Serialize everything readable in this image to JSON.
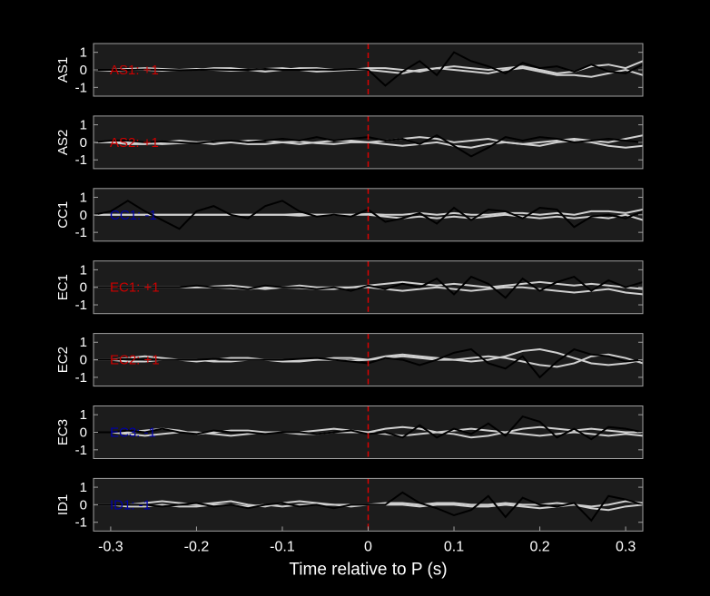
{
  "chart_data": [
    {
      "type": "line",
      "ylabel": "AS1",
      "annotation": "AS1: +1",
      "annotation_color": "#cc0000",
      "vline": 0,
      "vline_color": "#dd0000",
      "x": [
        -0.32,
        -0.3,
        -0.28,
        -0.26,
        -0.24,
        -0.22,
        -0.2,
        -0.18,
        -0.16,
        -0.14,
        -0.12,
        -0.1,
        -0.08,
        -0.06,
        -0.04,
        -0.02,
        0,
        0.02,
        0.04,
        0.06,
        0.08,
        0.1,
        0.12,
        0.14,
        0.16,
        0.18,
        0.2,
        0.22,
        0.24,
        0.26,
        0.28,
        0.3,
        0.32
      ],
      "xlim": [
        -0.32,
        0.32
      ],
      "ylim": [
        -1.5,
        1.5
      ],
      "yticks": [
        -1,
        0,
        1
      ],
      "series": [
        {
          "color": "#d0d0d0",
          "values": [
            0,
            0,
            0.05,
            0.1,
            0.05,
            0,
            0,
            0.1,
            0.1,
            0,
            -0.1,
            0,
            0.1,
            0.1,
            0,
            0,
            0.1,
            0.1,
            0,
            -0.1,
            0.1,
            0.2,
            0.1,
            0,
            0.1,
            0.2,
            0,
            -0.2,
            -0.1,
            0.2,
            0.3,
            0.1,
            0.5
          ]
        },
        {
          "color": "#d0d0d0",
          "values": [
            0,
            -0.05,
            0,
            0,
            -0.05,
            0,
            0.05,
            0,
            -0.05,
            0,
            0.05,
            0.1,
            0,
            -0.1,
            -0.05,
            0,
            0,
            -0.1,
            -0.2,
            0,
            0.1,
            0,
            -0.1,
            -0.2,
            0,
            0.1,
            -0.1,
            -0.3,
            -0.3,
            -0.4,
            -0.2,
            0,
            -0.3
          ]
        },
        {
          "color": "#000000",
          "values": [
            0,
            0,
            0,
            0.02,
            0,
            -0.02,
            0,
            0.02,
            0,
            0,
            0.05,
            0,
            0,
            0.02,
            0,
            0.05,
            0,
            -0.9,
            -0.1,
            0.5,
            -0.3,
            1.0,
            0.5,
            0.2,
            -0.2,
            0.4,
            0.1,
            0.2,
            -0.1,
            0.3,
            -0.1,
            -0.2,
            0.3
          ]
        }
      ]
    },
    {
      "type": "line",
      "ylabel": "AS2",
      "annotation": "AS2: +1",
      "annotation_color": "#cc0000",
      "vline": 0,
      "vline_color": "#dd0000",
      "x": [
        -0.32,
        -0.3,
        -0.28,
        -0.26,
        -0.24,
        -0.22,
        -0.2,
        -0.18,
        -0.16,
        -0.14,
        -0.12,
        -0.1,
        -0.08,
        -0.06,
        -0.04,
        -0.02,
        0,
        0.02,
        0.04,
        0.06,
        0.08,
        0.1,
        0.12,
        0.14,
        0.16,
        0.18,
        0.2,
        0.22,
        0.24,
        0.26,
        0.28,
        0.3,
        0.32
      ],
      "xlim": [
        -0.32,
        0.32
      ],
      "ylim": [
        -1.5,
        1.5
      ],
      "yticks": [
        -1,
        0,
        1
      ],
      "series": [
        {
          "color": "#d0d0d0",
          "values": [
            0,
            0,
            -0.1,
            -0.1,
            0,
            0.1,
            0,
            -0.1,
            0,
            0.1,
            0.1,
            0,
            -0.1,
            0,
            0.1,
            0.1,
            0,
            0.1,
            0.2,
            0.3,
            0.2,
            0,
            0.1,
            0.2,
            0,
            -0.1,
            0,
            0.1,
            0.2,
            0.1,
            0,
            0.2,
            0.4
          ]
        },
        {
          "color": "#d0d0d0",
          "values": [
            0,
            0,
            0,
            -0.05,
            -0.1,
            -0.05,
            0,
            0.05,
            0,
            -0.1,
            -0.1,
            0,
            0.05,
            -0.05,
            -0.1,
            0,
            0,
            -0.1,
            -0.2,
            -0.1,
            0,
            -0.2,
            -0.3,
            -0.1,
            0,
            -0.1,
            -0.2,
            0,
            0.1,
            0,
            -0.2,
            -0.3,
            -0.2
          ]
        },
        {
          "color": "#000000",
          "values": [
            0,
            0.1,
            0.1,
            0,
            0.05,
            0,
            -0.05,
            0.05,
            0.1,
            0,
            0.1,
            0.2,
            0.1,
            0.3,
            0.1,
            0.2,
            0.3,
            0.1,
            0.2,
            -0.1,
            0.4,
            -0.2,
            -0.8,
            -0.3,
            0.3,
            0.1,
            0.3,
            0.2,
            0,
            0.1,
            0.2,
            0.1,
            0
          ]
        }
      ]
    },
    {
      "type": "line",
      "ylabel": "CC1",
      "annotation": "CC1: -1",
      "annotation_color": "#0000aa",
      "vline": 0,
      "vline_color": "#dd0000",
      "x": [
        -0.32,
        -0.3,
        -0.28,
        -0.26,
        -0.24,
        -0.22,
        -0.2,
        -0.18,
        -0.16,
        -0.14,
        -0.12,
        -0.1,
        -0.08,
        -0.06,
        -0.04,
        -0.02,
        0,
        0.02,
        0.04,
        0.06,
        0.08,
        0.1,
        0.12,
        0.14,
        0.16,
        0.18,
        0.2,
        0.22,
        0.24,
        0.26,
        0.28,
        0.3,
        0.32
      ],
      "xlim": [
        -0.32,
        0.32
      ],
      "ylim": [
        -1.5,
        1.5
      ],
      "yticks": [
        -1,
        0,
        1
      ],
      "series": [
        {
          "color": "#d0d0d0",
          "values": [
            0,
            0,
            0,
            0,
            0,
            0,
            0,
            0,
            0,
            0,
            0,
            0,
            0.05,
            0,
            0,
            0,
            0.05,
            0,
            0,
            0.1,
            0,
            0.1,
            0,
            0,
            0.1,
            0.1,
            0,
            0.1,
            0,
            0.2,
            0.2,
            0.1,
            0.3
          ]
        },
        {
          "color": "#d0d0d0",
          "values": [
            0,
            0,
            0,
            0,
            0,
            0,
            0,
            0,
            0,
            0,
            0,
            0,
            -0.05,
            0,
            0,
            0,
            0,
            -0.1,
            -0.2,
            -0.1,
            -0.2,
            -0.1,
            -0.2,
            -0.1,
            0,
            -0.1,
            -0.2,
            -0.1,
            -0.2,
            -0.1,
            -0.2,
            0,
            -0.3
          ]
        },
        {
          "color": "#000000",
          "values": [
            0,
            0.2,
            0.8,
            0.2,
            -0.3,
            -0.8,
            0.2,
            0.5,
            0,
            -0.2,
            0.5,
            0.8,
            0.2,
            -0.1,
            0,
            -0.1,
            0.3,
            -0.4,
            -0.2,
            0.1,
            -0.5,
            0.4,
            -0.3,
            0.3,
            0.2,
            -0.2,
            0.4,
            0.3,
            -0.7,
            -0.1,
            0,
            -0.2,
            0.2
          ]
        }
      ]
    },
    {
      "type": "line",
      "ylabel": "EC1",
      "annotation": "EC1: +1",
      "annotation_color": "#cc0000",
      "vline": 0,
      "vline_color": "#dd0000",
      "x": [
        -0.32,
        -0.3,
        -0.28,
        -0.26,
        -0.24,
        -0.22,
        -0.2,
        -0.18,
        -0.16,
        -0.14,
        -0.12,
        -0.1,
        -0.08,
        -0.06,
        -0.04,
        -0.02,
        0,
        0.02,
        0.04,
        0.06,
        0.08,
        0.1,
        0.12,
        0.14,
        0.16,
        0.18,
        0.2,
        0.22,
        0.24,
        0.26,
        0.28,
        0.3,
        0.32
      ],
      "xlim": [
        -0.32,
        0.32
      ],
      "ylim": [
        -1.5,
        1.5
      ],
      "yticks": [
        -1,
        0,
        1
      ],
      "series": [
        {
          "color": "#d0d0d0",
          "values": [
            0,
            0,
            0,
            0,
            0,
            0,
            0,
            0.05,
            0.1,
            0,
            -0.1,
            0,
            0.1,
            0,
            0,
            0,
            0.1,
            0.2,
            0.3,
            0.2,
            0.1,
            0.2,
            0.1,
            0,
            0.1,
            0.2,
            0.3,
            0.2,
            0.1,
            0.2,
            0.1,
            0,
            -0.1
          ]
        },
        {
          "color": "#d0d0d0",
          "values": [
            0,
            0,
            0,
            0,
            0,
            0,
            0,
            0,
            -0.05,
            -0.1,
            0,
            0,
            -0.05,
            -0.1,
            -0.1,
            0,
            0,
            -0.1,
            -0.2,
            -0.1,
            0,
            -0.1,
            -0.2,
            -0.1,
            0,
            0,
            -0.1,
            -0.2,
            -0.3,
            -0.2,
            -0.1,
            -0.3,
            -0.4
          ]
        },
        {
          "color": "#000000",
          "values": [
            0,
            0,
            0,
            0,
            0,
            0,
            0.1,
            0,
            0,
            -0.1,
            0.1,
            0,
            0,
            -0.1,
            0,
            -0.2,
            0.1,
            -0.1,
            0.2,
            0,
            0.5,
            -0.4,
            0.6,
            0.2,
            -0.6,
            0.5,
            -0.2,
            0.3,
            0.6,
            -0.2,
            0.4,
            0,
            0.3
          ]
        }
      ]
    },
    {
      "type": "line",
      "ylabel": "EC2",
      "annotation": "EC2: +1",
      "annotation_color": "#cc0000",
      "vline": 0,
      "vline_color": "#dd0000",
      "x": [
        -0.32,
        -0.3,
        -0.28,
        -0.26,
        -0.24,
        -0.22,
        -0.2,
        -0.18,
        -0.16,
        -0.14,
        -0.12,
        -0.1,
        -0.08,
        -0.06,
        -0.04,
        -0.02,
        0,
        0.02,
        0.04,
        0.06,
        0.08,
        0.1,
        0.12,
        0.14,
        0.16,
        0.18,
        0.2,
        0.22,
        0.24,
        0.26,
        0.28,
        0.3,
        0.32
      ],
      "xlim": [
        -0.32,
        0.32
      ],
      "ylim": [
        -1.5,
        1.5
      ],
      "yticks": [
        -1,
        0,
        1
      ],
      "series": [
        {
          "color": "#d0d0d0",
          "values": [
            0,
            0,
            0.1,
            0.2,
            0.1,
            0,
            -0.1,
            0,
            0.1,
            0.1,
            0,
            -0.1,
            -0.1,
            0,
            0.1,
            0.1,
            0,
            0.2,
            0.3,
            0.2,
            0.1,
            0,
            -0.1,
            0,
            0.2,
            0.5,
            0.6,
            0.4,
            0.1,
            -0.2,
            -0.3,
            -0.2,
            0
          ]
        },
        {
          "color": "#d0d0d0",
          "values": [
            0,
            0,
            -0.1,
            -0.1,
            0,
            0,
            0,
            -0.1,
            -0.1,
            0,
            0,
            0,
            0,
            0,
            0,
            -0.05,
            0,
            0.1,
            0.2,
            0.1,
            0,
            0,
            0.1,
            0.2,
            0.1,
            -0.1,
            -0.3,
            -0.4,
            -0.2,
            0.2,
            0.3,
            0.1,
            -0.2
          ]
        },
        {
          "color": "#000000",
          "values": [
            0,
            0,
            0.05,
            0,
            0,
            0,
            0,
            0.05,
            0,
            0,
            0,
            0,
            0.05,
            0.1,
            0,
            -0.1,
            -0.2,
            0.1,
            0,
            -0.3,
            0,
            0.4,
            0.6,
            -0.2,
            -0.5,
            0.2,
            -1.0,
            -0.1,
            0.6,
            0.3,
            0.2,
            -0.1,
            0
          ]
        }
      ]
    },
    {
      "type": "line",
      "ylabel": "EC3",
      "annotation": "EC3: -1",
      "annotation_color": "#0000aa",
      "vline": 0,
      "vline_color": "#dd0000",
      "x": [
        -0.32,
        -0.3,
        -0.28,
        -0.26,
        -0.24,
        -0.22,
        -0.2,
        -0.18,
        -0.16,
        -0.14,
        -0.12,
        -0.1,
        -0.08,
        -0.06,
        -0.04,
        -0.02,
        0,
        0.02,
        0.04,
        0.06,
        0.08,
        0.1,
        0.12,
        0.14,
        0.16,
        0.18,
        0.2,
        0.22,
        0.24,
        0.26,
        0.28,
        0.3,
        0.32
      ],
      "xlim": [
        -0.32,
        0.32
      ],
      "ylim": [
        -1.5,
        1.5
      ],
      "yticks": [
        -1,
        0,
        1
      ],
      "series": [
        {
          "color": "#d0d0d0",
          "values": [
            0,
            0,
            0,
            0.1,
            0.2,
            0.1,
            -0.1,
            0,
            0.1,
            0.1,
            0,
            0,
            0,
            0.1,
            0.2,
            0.1,
            0,
            0.2,
            0.3,
            0.2,
            0,
            0.1,
            0.2,
            0.1,
            0,
            0.2,
            0.3,
            0.2,
            0.1,
            0.2,
            0.1,
            0,
            0
          ]
        },
        {
          "color": "#d0d0d0",
          "values": [
            0,
            0,
            -0.1,
            -0.2,
            -0.1,
            0,
            0,
            -0.1,
            -0.2,
            -0.1,
            0,
            0,
            -0.1,
            -0.1,
            0,
            0,
            0,
            -0.1,
            -0.2,
            -0.1,
            0,
            -0.1,
            -0.3,
            -0.2,
            0,
            -0.1,
            -0.2,
            -0.1,
            0,
            -0.1,
            -0.2,
            -0.1,
            -0.2
          ]
        },
        {
          "color": "#000000",
          "values": [
            0,
            0,
            0.1,
            0,
            0.2,
            0,
            -0.1,
            0.1,
            0,
            0,
            -0.1,
            0,
            0,
            -0.1,
            0,
            0.1,
            -0.1,
            0,
            -0.3,
            0.4,
            -0.3,
            0.2,
            -0.1,
            0.5,
            -0.2,
            0.9,
            0.6,
            -0.3,
            0.2,
            -0.4,
            0.3,
            0.2,
            0
          ]
        }
      ]
    },
    {
      "type": "line",
      "ylabel": "ID1",
      "annotation": "ID1: -1",
      "annotation_color": "#0000aa",
      "vline": 0,
      "vline_color": "#dd0000",
      "x": [
        -0.32,
        -0.3,
        -0.28,
        -0.26,
        -0.24,
        -0.22,
        -0.2,
        -0.18,
        -0.16,
        -0.14,
        -0.12,
        -0.1,
        -0.08,
        -0.06,
        -0.04,
        -0.02,
        0,
        0.02,
        0.04,
        0.06,
        0.08,
        0.1,
        0.12,
        0.14,
        0.16,
        0.18,
        0.2,
        0.22,
        0.24,
        0.26,
        0.28,
        0.3,
        0.32
      ],
      "xlim": [
        -0.32,
        0.32
      ],
      "ylim": [
        -1.5,
        1.5
      ],
      "yticks": [
        -1,
        0,
        1
      ],
      "xticks": [
        -0.3,
        -0.2,
        -0.1,
        0,
        0.1,
        0.2,
        0.3
      ],
      "xlabel": "Time relative to P (s)",
      "series": [
        {
          "color": "#d0d0d0",
          "values": [
            0,
            0,
            0,
            0.1,
            0.2,
            0.1,
            0,
            0.1,
            0.2,
            0,
            -0.1,
            0.1,
            0.2,
            0.1,
            0,
            0,
            0,
            0.1,
            0.1,
            0,
            0.1,
            0.1,
            0,
            0,
            0.1,
            0,
            0,
            0.1,
            0,
            -0.1,
            0,
            0.2,
            0.1
          ]
        },
        {
          "color": "#d0d0d0",
          "values": [
            0,
            0,
            -0.1,
            -0.1,
            0,
            -0.1,
            -0.1,
            0,
            0,
            -0.1,
            0,
            -0.1,
            0,
            0,
            0,
            -0.1,
            0,
            0,
            0,
            -0.1,
            0,
            0,
            -0.1,
            -0.1,
            0,
            -0.1,
            -0.2,
            -0.1,
            0,
            -0.2,
            -0.3,
            -0.1,
            0
          ]
        },
        {
          "color": "#000000",
          "values": [
            0,
            0,
            0,
            0,
            -0.1,
            0,
            0.1,
            -0.1,
            0,
            -0.2,
            0,
            0.1,
            -0.1,
            0,
            -0.2,
            0,
            0,
            0,
            0.7,
            0.1,
            -0.2,
            -0.6,
            -0.3,
            0.5,
            -0.7,
            0.4,
            0,
            -0.1,
            0.1,
            -0.9,
            0.5,
            0.3,
            0
          ]
        }
      ]
    }
  ]
}
